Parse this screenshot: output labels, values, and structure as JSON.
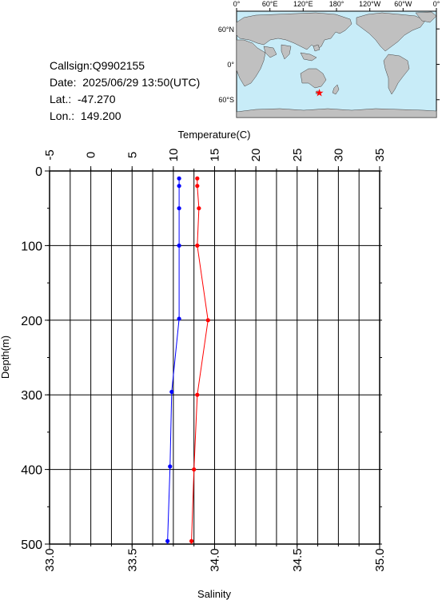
{
  "info": {
    "callsign": "Callsign:Q9902155",
    "date": "Date:  2025/06/29 13:50(UTC)",
    "lat": "Lat.:  -47.270",
    "lon": "Lon.:  149.200"
  },
  "map": {
    "lon_labels": [
      "0°",
      "60°E",
      "120°E",
      "180°",
      "120°W",
      "60°W",
      "0°"
    ],
    "lat_labels": [
      "60°N",
      "0°",
      "60°S"
    ],
    "station": {
      "lat": -47.27,
      "lon": 149.2
    },
    "colors": {
      "ocean": "#c8ecf8",
      "land": "#c0c0c0",
      "marker": "#ff0000"
    }
  },
  "chart_data": {
    "type": "line",
    "title": "",
    "top_axis": {
      "label": "Temperature(C)",
      "range": [
        -5,
        35
      ],
      "ticks": [
        -5,
        0,
        5,
        10,
        15,
        20,
        25,
        30,
        35
      ]
    },
    "bottom_axis": {
      "label": "Salinity",
      "range": [
        33.0,
        35.0
      ],
      "ticks": [
        "33.0",
        "33.5",
        "34.0",
        "34.5",
        "35.0"
      ]
    },
    "y_axis": {
      "label": "Depth(m)",
      "range": [
        0,
        500
      ],
      "inverted": true,
      "ticks": [
        0,
        100,
        200,
        300,
        400,
        500
      ]
    },
    "grid": true,
    "series": [
      {
        "color": "#ff0000",
        "axis": "top",
        "points": [
          {
            "depth": 10,
            "value": 12.9
          },
          {
            "depth": 20,
            "value": 12.9
          },
          {
            "depth": 50,
            "value": 13.1
          },
          {
            "depth": 100,
            "value": 12.9
          },
          {
            "depth": 200,
            "value": 14.2
          },
          {
            "depth": 300,
            "value": 12.9
          },
          {
            "depth": 400,
            "value": 12.5
          },
          {
            "depth": 496,
            "value": 12.2
          }
        ]
      },
      {
        "color": "#0000ff",
        "axis": "bottom",
        "points": [
          {
            "depth": 10,
            "value": 33.785
          },
          {
            "depth": 20,
            "value": 33.785
          },
          {
            "depth": 50,
            "value": 33.785
          },
          {
            "depth": 100,
            "value": 33.785
          },
          {
            "depth": 198,
            "value": 33.785
          },
          {
            "depth": 296,
            "value": 33.74
          },
          {
            "depth": 396,
            "value": 33.73
          },
          {
            "depth": 496,
            "value": 33.715
          }
        ]
      }
    ]
  }
}
